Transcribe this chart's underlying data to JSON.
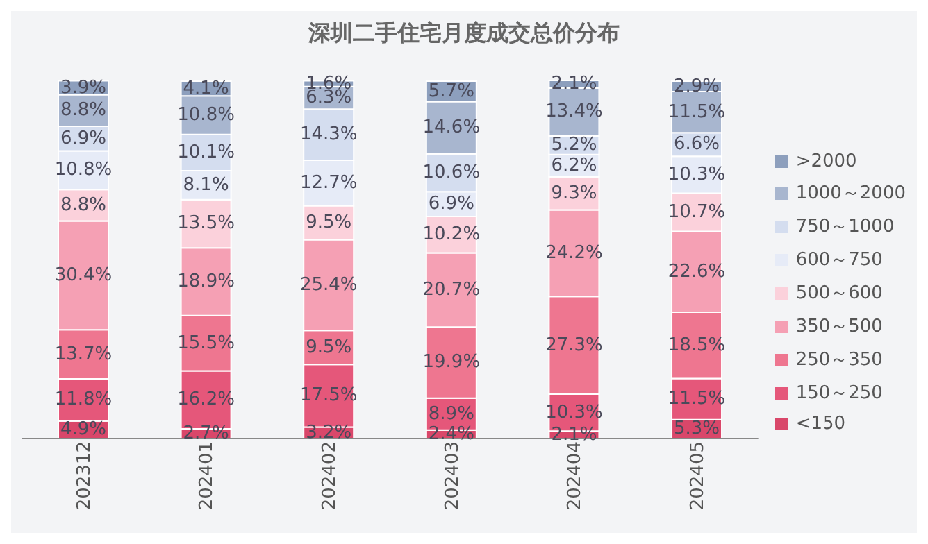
{
  "chart_data": {
    "type": "bar",
    "title": "深圳二手住宅月度成交总价分布",
    "stacked": true,
    "legend": "right",
    "tick_labels": "x",
    "grid": false,
    "categories": [
      "202312",
      "202401",
      "202402",
      "202403",
      "202404",
      "202405"
    ],
    "series": [
      {
        "name": "<150",
        "color": "#d9476a",
        "values": [
          4.9,
          2.7,
          3.2,
          2.4,
          2.1,
          5.3
        ],
        "value_labels": [
          "4.9%",
          "2.7%",
          "3.2%",
          "2.4%",
          "2.1%",
          "5.3%"
        ]
      },
      {
        "name": "150～250",
        "color": "#e5577a",
        "values": [
          11.8,
          16.2,
          17.5,
          8.9,
          10.3,
          11.5
        ],
        "value_labels": [
          "11.8%",
          "16.2%",
          "17.5%",
          "8.9%",
          "10.3%",
          "11.5%"
        ]
      },
      {
        "name": "250～350",
        "color": "#ee7690",
        "values": [
          13.7,
          15.5,
          9.5,
          19.9,
          27.3,
          18.5
        ],
        "value_labels": [
          "13.7%",
          "15.5%",
          "9.5%",
          "19.9%",
          "27.3%",
          "18.5%"
        ]
      },
      {
        "name": "350～500",
        "color": "#f5a0b4",
        "values": [
          30.4,
          18.9,
          25.4,
          20.7,
          24.2,
          22.6
        ],
        "value_labels": [
          "30.4%",
          "18.9%",
          "25.4%",
          "20.7%",
          "24.2%",
          "22.6%"
        ]
      },
      {
        "name": "500～600",
        "color": "#fbd1db",
        "values": [
          8.8,
          13.5,
          9.5,
          10.2,
          9.3,
          10.7
        ],
        "value_labels": [
          "8.8%",
          "13.5%",
          "9.5%",
          "10.2%",
          "9.3%",
          "10.7%"
        ]
      },
      {
        "name": "600～750",
        "color": "#e6ebf7",
        "values": [
          10.8,
          8.1,
          12.7,
          6.9,
          6.2,
          10.3
        ],
        "value_labels": [
          "10.8%",
          "8.1%",
          "12.7%",
          "6.9%",
          "6.2%",
          "10.3%"
        ]
      },
      {
        "name": "750～1000",
        "color": "#d4ddef",
        "values": [
          6.9,
          10.1,
          14.3,
          10.6,
          5.2,
          6.6
        ],
        "value_labels": [
          "6.9%",
          "10.1%",
          "14.3%",
          "10.6%",
          "5.2%",
          "6.6%"
        ]
      },
      {
        "name": "1000～2000",
        "color": "#a8b6cf",
        "values": [
          8.8,
          10.8,
          6.3,
          14.6,
          13.4,
          11.5
        ],
        "value_labels": [
          "8.8%",
          "10.8%",
          "6.3%",
          "14.6%",
          "13.4%",
          "11.5%"
        ]
      },
      {
        "name": ">2000",
        "color": "#8d9fbd",
        "values": [
          3.9,
          4.1,
          1.6,
          5.7,
          2.1,
          2.9
        ],
        "value_labels": [
          "3.9%",
          "4.1%",
          "1.6%",
          "5.7%",
          "2.1%",
          "2.9%"
        ]
      }
    ]
  }
}
